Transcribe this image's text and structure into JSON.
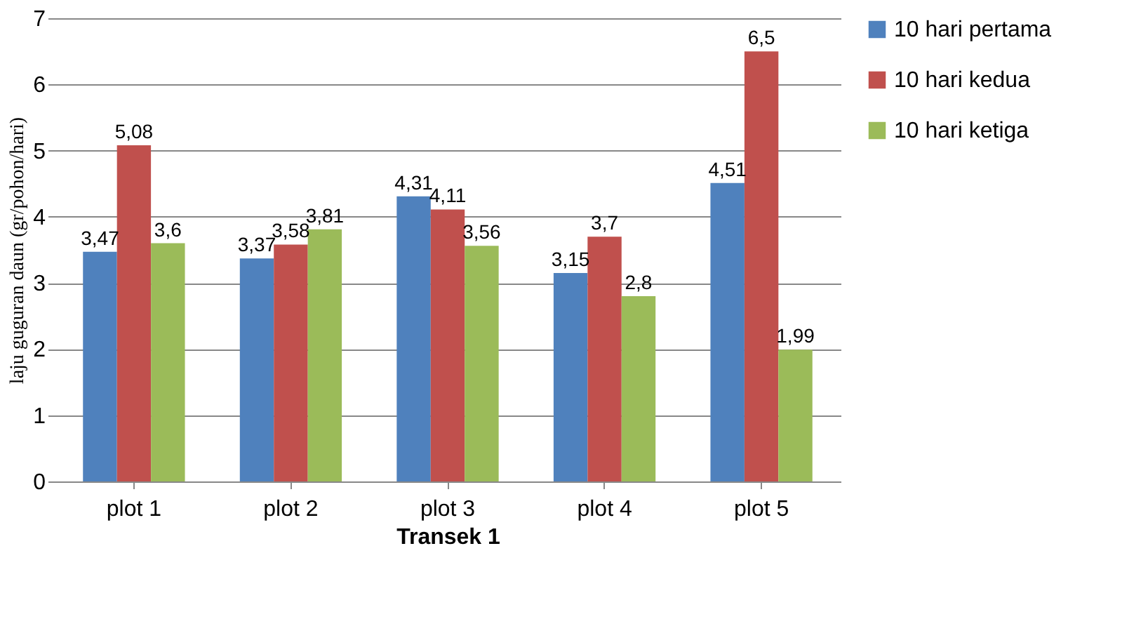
{
  "chart_data": {
    "type": "bar",
    "xlabel": "Transek 1",
    "ylabel": "laju guguran daun (gr/pohon/hari)",
    "categories": [
      "plot 1",
      "plot 2",
      "plot 3",
      "plot 4",
      "plot 5"
    ],
    "series": [
      {
        "name": "10 hari pertama",
        "color": "#4f81bd",
        "values": [
          3.47,
          3.37,
          4.31,
          3.15,
          4.51
        ],
        "value_labels": [
          "3,47",
          "3,37",
          "4,31",
          "3,15",
          "4,51"
        ]
      },
      {
        "name": "10 hari kedua",
        "color": "#c0504d",
        "values": [
          5.08,
          3.58,
          4.11,
          3.7,
          6.5
        ],
        "value_labels": [
          "5,08",
          "3,58",
          "4,11",
          "3,7",
          "6,5"
        ]
      },
      {
        "name": "10 hari ketiga",
        "color": "#9bbb59",
        "values": [
          3.6,
          3.81,
          3.56,
          2.8,
          1.99
        ],
        "value_labels": [
          "3,6",
          "3,81",
          "3,56",
          "2,8",
          "1,99"
        ]
      }
    ],
    "ylim": [
      0,
      7
    ],
    "yticks": [
      0,
      1,
      2,
      3,
      4,
      5,
      6,
      7
    ],
    "grid": "y",
    "legend": "right"
  }
}
